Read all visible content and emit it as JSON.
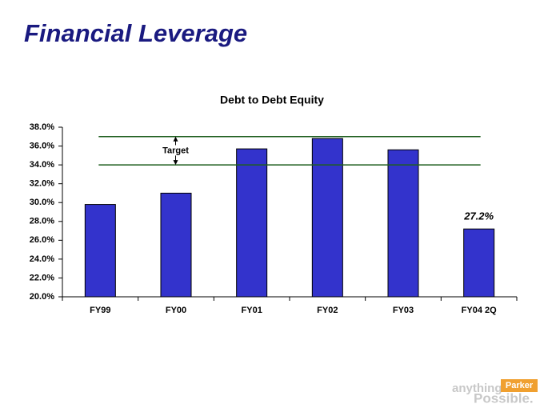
{
  "page_title": "Financial Leverage",
  "chart_data": {
    "type": "bar",
    "title": "Debt to Debt Equity",
    "categories": [
      "FY99",
      "FY00",
      "FY01",
      "FY02",
      "FY03",
      "FY04 2Q"
    ],
    "values": [
      29.8,
      31.0,
      35.7,
      36.8,
      35.6,
      27.2
    ],
    "value_labels": [
      null,
      null,
      null,
      null,
      null,
      "27.2%"
    ],
    "color": "#3333cc",
    "ylim": [
      20,
      38
    ],
    "yticks": [
      {
        "value": 20,
        "label": "20.0%"
      },
      {
        "value": 22,
        "label": "22.0%"
      },
      {
        "value": 24,
        "label": "24.0%"
      },
      {
        "value": 26,
        "label": "26.0%"
      },
      {
        "value": 28,
        "label": "28.0%"
      },
      {
        "value": 30,
        "label": "30.0%"
      },
      {
        "value": 32,
        "label": "32.0%"
      },
      {
        "value": 34,
        "label": "34.0%"
      },
      {
        "value": 36,
        "label": "36.0%"
      },
      {
        "value": 38,
        "label": "38.0%"
      }
    ],
    "grid": false,
    "target_range": [
      34,
      37
    ],
    "target_label": "Target",
    "target_color": "#1e5e1e"
  },
  "logo": {
    "word1": "anything",
    "brand": "Parker",
    "word2": "Possible."
  }
}
